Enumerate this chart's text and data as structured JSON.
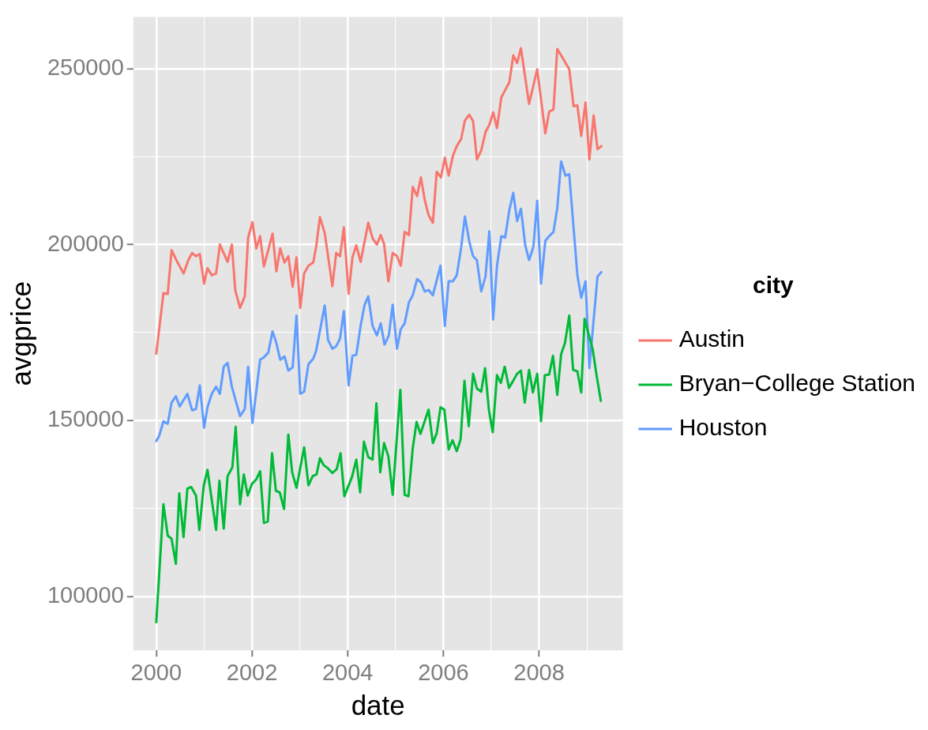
{
  "chart_data": {
    "type": "line",
    "xlabel": "date",
    "ylabel": "avgprice",
    "legend_title": "city",
    "legend": "right",
    "grid": true,
    "marker": "none",
    "line_style": "solid",
    "xlim": [
      1999.52,
      2009.75
    ],
    "ylim": [
      84700,
      264700
    ],
    "xticks": [
      2000,
      {
        "value": 2001,
        "label": null
      },
      2002,
      {
        "value": 2003,
        "label": null
      },
      2004,
      {
        "value": 2005,
        "label": null
      },
      2006,
      {
        "value": 2007,
        "label": null
      },
      2008,
      {
        "value": 2009,
        "label": null
      }
    ],
    "yticks": [
      100000,
      {
        "value": 125000,
        "label": null
      },
      150000,
      {
        "value": 175000,
        "label": null
      },
      200000,
      {
        "value": 225000,
        "label": null
      },
      250000
    ],
    "series": [
      {
        "name": "Austin",
        "color": "#f8766d",
        "x": [
          2000,
          2000.15,
          2000.24,
          2000.32,
          2000.42,
          2000.57,
          2000.67,
          2000.75,
          2000.83,
          2000.91,
          2001.0,
          2001.07,
          2001.16,
          2001.25,
          2001.33,
          2001.49,
          2001.58,
          2001.65,
          2001.75,
          2001.85,
          2001.92,
          2002.01,
          2002.09,
          2002.17,
          2002.25,
          2002.43,
          2002.51,
          2002.59,
          2002.68,
          2002.76,
          2002.85,
          2002.93,
          2003.01,
          2003.09,
          2003.18,
          2003.28,
          2003.34,
          2003.42,
          2003.52,
          2003.68,
          2003.76,
          2003.84,
          2003.92,
          2004.02,
          2004.1,
          2004.18,
          2004.27,
          2004.43,
          2004.52,
          2004.61,
          2004.69,
          2004.76,
          2004.85,
          2004.94,
          2005.03,
          2005.11,
          2005.19,
          2005.28,
          2005.36,
          2005.45,
          2005.53,
          2005.61,
          2005.69,
          2005.78,
          2005.86,
          2005.95,
          2006.03,
          2006.11,
          2006.2,
          2006.28,
          2006.37,
          2006.45,
          2006.54,
          2006.62,
          2006.7,
          2006.79,
          2006.88,
          2006.96,
          2007.04,
          2007.12,
          2007.21,
          2007.38,
          2007.46,
          2007.54,
          2007.62,
          2007.79,
          2007.96,
          2008.13,
          2008.21,
          2008.3,
          2008.38,
          2008.46,
          2008.63,
          2008.72,
          2008.8,
          2008.88,
          2008.97,
          2009.05,
          2009.14,
          2009.22,
          2009.3
        ],
        "values": [
          169000,
          186200,
          186000,
          198400,
          195600,
          191800,
          195600,
          197600,
          196700,
          197300,
          188900,
          193300,
          191300,
          191800,
          200000,
          195100,
          200000,
          187100,
          182000,
          185300,
          202000,
          206400,
          198900,
          202400,
          193800,
          203100,
          192400,
          198900,
          194900,
          196700,
          188000,
          196400,
          182000,
          191800,
          194000,
          194900,
          199300,
          207800,
          203300,
          188200,
          197600,
          196700,
          204900,
          186000,
          196400,
          199800,
          195100,
          206200,
          201800,
          200000,
          202700,
          200200,
          189600,
          197600,
          196700,
          194000,
          203600,
          202700,
          216400,
          213800,
          219100,
          212700,
          208400,
          206200,
          220700,
          219100,
          224700,
          219600,
          225300,
          228000,
          230000,
          235300,
          236900,
          235100,
          224200,
          226700,
          232000,
          234000,
          237600,
          233100,
          241800,
          246200,
          253800,
          251600,
          255800,
          240000,
          249800,
          231600,
          237800,
          238400,
          255600,
          253800,
          249800,
          239300,
          239600,
          230900,
          240400,
          224200,
          236700,
          227100,
          228000
        ]
      },
      {
        "name": "Bryan−College Station",
        "color": "#00ba38",
        "x": [
          2000,
          2000.15,
          2000.24,
          2000.32,
          2000.41,
          2000.48,
          2000.57,
          2000.65,
          2000.73,
          2000.83,
          2000.9,
          2000.99,
          2001.07,
          2001.25,
          2001.32,
          2001.41,
          2001.49,
          2001.59,
          2001.66,
          2001.75,
          2001.83,
          2001.91,
          2002.0,
          2002.09,
          2002.17,
          2002.25,
          2002.33,
          2002.42,
          2002.5,
          2002.58,
          2002.67,
          2002.76,
          2002.84,
          2002.93,
          2003.09,
          2003.18,
          2003.27,
          2003.35,
          2003.42,
          2003.5,
          2003.59,
          2003.68,
          2003.77,
          2003.85,
          2003.93,
          2004.09,
          2004.18,
          2004.26,
          2004.34,
          2004.43,
          2004.52,
          2004.6,
          2004.68,
          2004.76,
          2004.85,
          2004.94,
          2005.1,
          2005.19,
          2005.27,
          2005.36,
          2005.44,
          2005.52,
          2005.69,
          2005.78,
          2005.86,
          2005.94,
          2006.02,
          2006.11,
          2006.19,
          2006.28,
          2006.36,
          2006.44,
          2006.53,
          2006.62,
          2006.7,
          2006.79,
          2006.87,
          2006.95,
          2007.03,
          2007.12,
          2007.2,
          2007.28,
          2007.37,
          2007.45,
          2007.54,
          2007.62,
          2007.7,
          2007.79,
          2007.87,
          2007.96,
          2008.04,
          2008.12,
          2008.21,
          2008.29,
          2008.38,
          2008.46,
          2008.54,
          2008.63,
          2008.71,
          2008.8,
          2008.88,
          2008.95,
          2009.12,
          2009.2,
          2009.29
        ],
        "values": [
          92700,
          126200,
          117300,
          116400,
          109300,
          129300,
          116900,
          130700,
          131100,
          128700,
          118900,
          131300,
          136000,
          118900,
          132900,
          119300,
          134200,
          136700,
          148200,
          126200,
          134700,
          128700,
          132000,
          133300,
          135600,
          120900,
          121300,
          140700,
          130000,
          129600,
          124900,
          146000,
          135300,
          130900,
          142400,
          131600,
          134200,
          134700,
          139300,
          137300,
          136400,
          135100,
          136200,
          140700,
          128500,
          134000,
          138900,
          129600,
          144000,
          139600,
          138900,
          154900,
          135300,
          143600,
          139800,
          128900,
          158700,
          128900,
          128500,
          142200,
          149600,
          146200,
          153100,
          143600,
          146400,
          153800,
          153100,
          141800,
          144400,
          141300,
          144700,
          161300,
          148400,
          163300,
          159100,
          158200,
          164900,
          153100,
          146700,
          162900,
          160700,
          165300,
          159300,
          161100,
          163300,
          164200,
          155100,
          164400,
          158000,
          163300,
          149800,
          162900,
          163100,
          168400,
          157300,
          168900,
          172000,
          179800,
          164400,
          164000,
          158000,
          178900,
          170200,
          162900,
          155600
        ]
      },
      {
        "name": "Houston",
        "color": "#619cff",
        "x": [
          2000,
          2000.06,
          2000.15,
          2000.24,
          2000.32,
          2000.41,
          2000.49,
          2000.65,
          2000.75,
          2000.83,
          2000.91,
          2001.0,
          2001.07,
          2001.16,
          2001.25,
          2001.33,
          2001.41,
          2001.49,
          2001.58,
          2001.75,
          2001.85,
          2001.92,
          2002.01,
          2002.17,
          2002.25,
          2002.34,
          2002.43,
          2002.51,
          2002.59,
          2002.68,
          2002.76,
          2002.85,
          2002.93,
          2003.01,
          2003.09,
          2003.18,
          2003.28,
          2003.34,
          2003.52,
          2003.59,
          2003.68,
          2003.76,
          2003.84,
          2003.92,
          2004.02,
          2004.1,
          2004.18,
          2004.27,
          2004.35,
          2004.43,
          2004.52,
          2004.61,
          2004.69,
          2004.77,
          2004.86,
          2004.94,
          2005.03,
          2005.11,
          2005.19,
          2005.28,
          2005.36,
          2005.45,
          2005.53,
          2005.61,
          2005.69,
          2005.78,
          2005.94,
          2006.03,
          2006.11,
          2006.2,
          2006.28,
          2006.37,
          2006.45,
          2006.54,
          2006.62,
          2006.7,
          2006.79,
          2006.88,
          2006.96,
          2007.04,
          2007.12,
          2007.21,
          2007.29,
          2007.38,
          2007.46,
          2007.54,
          2007.62,
          2007.71,
          2007.79,
          2007.88,
          2007.96,
          2008.04,
          2008.13,
          2008.21,
          2008.3,
          2008.38,
          2008.46,
          2008.55,
          2008.63,
          2008.8,
          2008.88,
          2008.97,
          2009.05,
          2009.22,
          2009.3
        ],
        "values": [
          144200,
          145600,
          149800,
          149100,
          155100,
          156900,
          154000,
          157600,
          152900,
          153300,
          160000,
          148000,
          153800,
          157600,
          159600,
          157600,
          165300,
          166400,
          159600,
          151300,
          153300,
          165300,
          149300,
          167300,
          168000,
          169300,
          175300,
          172000,
          167300,
          168200,
          164200,
          165100,
          179800,
          157600,
          158200,
          166000,
          167600,
          169800,
          182700,
          172900,
          170400,
          171100,
          173300,
          181100,
          160000,
          168400,
          168700,
          176900,
          182700,
          185300,
          176900,
          174200,
          177600,
          171600,
          174200,
          182900,
          170400,
          176000,
          177600,
          183600,
          185600,
          190200,
          189300,
          186700,
          187100,
          185600,
          194000,
          176900,
          189600,
          189600,
          191300,
          199100,
          208000,
          200900,
          196700,
          195600,
          186700,
          190900,
          203800,
          178700,
          194000,
          202400,
          202000,
          210000,
          214700,
          206700,
          210200,
          199800,
          195600,
          199300,
          212400,
          188900,
          201100,
          202400,
          203600,
          210400,
          223600,
          219600,
          220000,
          191300,
          184900,
          189600,
          164900,
          190900,
          192200
        ]
      }
    ]
  }
}
